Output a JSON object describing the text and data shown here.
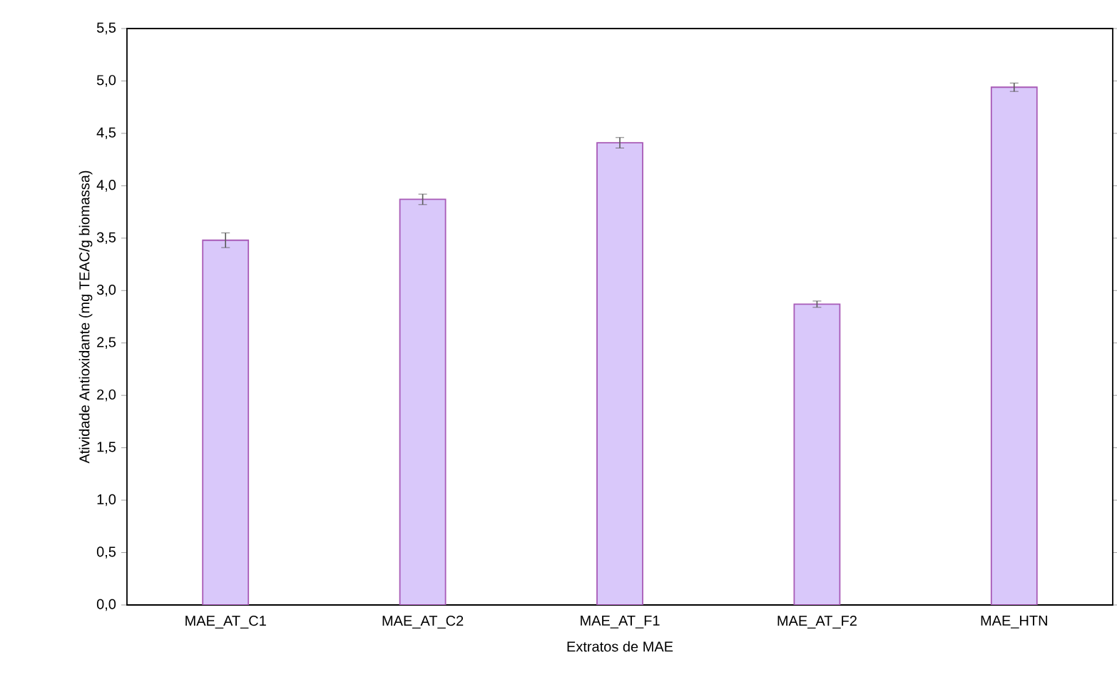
{
  "chart_data": {
    "type": "bar",
    "xlabel": "Extratos de MAE",
    "ylabel": "Atividade Antioxidante (mg TEAC/g biomassa)",
    "categories": [
      "MAE_AT_C1",
      "MAE_AT_C2",
      "MAE_AT_F1",
      "MAE_AT_F2",
      "MAE_HTN"
    ],
    "values": [
      3.48,
      3.87,
      4.41,
      2.87,
      4.94
    ],
    "errors": [
      0.07,
      0.05,
      0.05,
      0.03,
      0.04
    ],
    "color": "#d9c8fa",
    "ylim": [
      0,
      5.5
    ],
    "yticks": [
      {
        "value": 0,
        "label": "0,0"
      },
      {
        "value": 0.5,
        "label": "0,5"
      },
      {
        "value": 1,
        "label": "1,0"
      },
      {
        "value": 1.5,
        "label": "1,5"
      },
      {
        "value": 2,
        "label": "2,0"
      },
      {
        "value": 2.5,
        "label": "2,5"
      },
      {
        "value": 3,
        "label": "3,0"
      },
      {
        "value": 3.5,
        "label": "3,5"
      },
      {
        "value": 4,
        "label": "4,0"
      },
      {
        "value": 4.5,
        "label": "4,5"
      },
      {
        "value": 5,
        "label": "5,0"
      },
      {
        "value": 5.5,
        "label": "5,5"
      }
    ],
    "grid": false
  }
}
